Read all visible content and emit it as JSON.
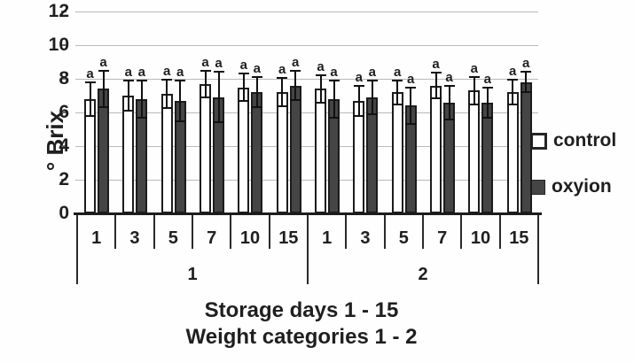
{
  "chart_data": {
    "type": "bar",
    "title": "",
    "ylabel": "° Brix",
    "xlabel_line1": "Storage days 1 - 15",
    "xlabel_line2": "Weight categories 1 - 2",
    "ylim": [
      0,
      12
    ],
    "yticks": [
      0,
      2,
      4,
      6,
      8,
      10,
      12
    ],
    "grid": true,
    "legend_position": "right",
    "categories": [
      "1",
      "3",
      "5",
      "7",
      "10",
      "15",
      "1",
      "3",
      "5",
      "7",
      "10",
      "15"
    ],
    "group_labels": [
      "1",
      "2"
    ],
    "group_spans": [
      6,
      6
    ],
    "sig_letter": "a",
    "series": [
      {
        "name": "control",
        "fill": "#ffffff",
        "border": "#1c1c1c",
        "values": [
          6.8,
          7.0,
          7.1,
          7.7,
          7.5,
          7.2,
          7.4,
          6.7,
          7.2,
          7.6,
          7.3,
          7.2
        ],
        "errors": [
          1.0,
          0.9,
          0.85,
          0.8,
          0.8,
          0.85,
          0.8,
          0.9,
          0.7,
          0.75,
          0.8,
          0.75
        ]
      },
      {
        "name": "oxyion",
        "fill": "#454545",
        "border": "#1c1c1c",
        "values": [
          7.4,
          6.8,
          6.7,
          6.9,
          7.2,
          7.6,
          6.8,
          6.9,
          6.4,
          6.6,
          6.6,
          7.8
        ],
        "errors": [
          1.1,
          1.1,
          1.2,
          1.5,
          0.9,
          0.85,
          1.1,
          1.0,
          1.1,
          1.0,
          0.9,
          0.6
        ]
      }
    ],
    "colors": {
      "grid": "#b9b9b9",
      "axis": "#1c1c1c",
      "text": "#1f1f1f",
      "oxyion_fill": "#454545",
      "control_fill": "#ffffff"
    }
  }
}
